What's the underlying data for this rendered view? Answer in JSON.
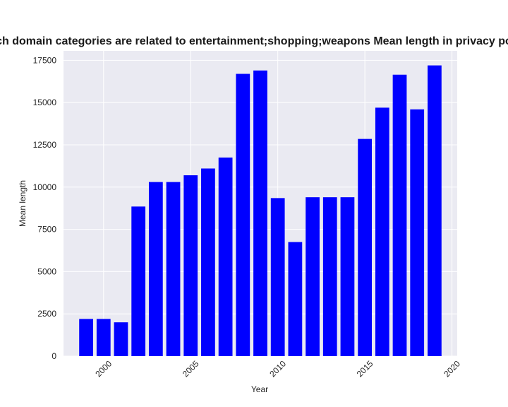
{
  "chart_data": {
    "type": "bar",
    "title": "Websites which domain categories are related to entertainment;shopping;weapons Mean length in privacy policies by Year",
    "xlabel": "Year",
    "ylabel": "Mean length",
    "x": [
      1999,
      2000,
      2001,
      2002,
      2003,
      2004,
      2005,
      2006,
      2007,
      2008,
      2009,
      2010,
      2011,
      2012,
      2013,
      2014,
      2015,
      2016,
      2017,
      2018,
      2019
    ],
    "values": [
      2200,
      2200,
      2000,
      8850,
      10300,
      10300,
      10700,
      11100,
      11750,
      16700,
      16900,
      9350,
      6750,
      9400,
      9400,
      9400,
      12850,
      14700,
      16650,
      14600,
      17200
    ],
    "xlim": [
      1997.7,
      2020.3
    ],
    "ylim": [
      0,
      18060
    ],
    "xticks": [
      2000,
      2005,
      2010,
      2015,
      2020
    ],
    "yticks": [
      0,
      2500,
      5000,
      7500,
      10000,
      12500,
      15000,
      17500
    ],
    "bar_color": "#0000ff",
    "grid": true,
    "plot_background": "#eaeaf2",
    "grid_color": "#ffffff"
  }
}
